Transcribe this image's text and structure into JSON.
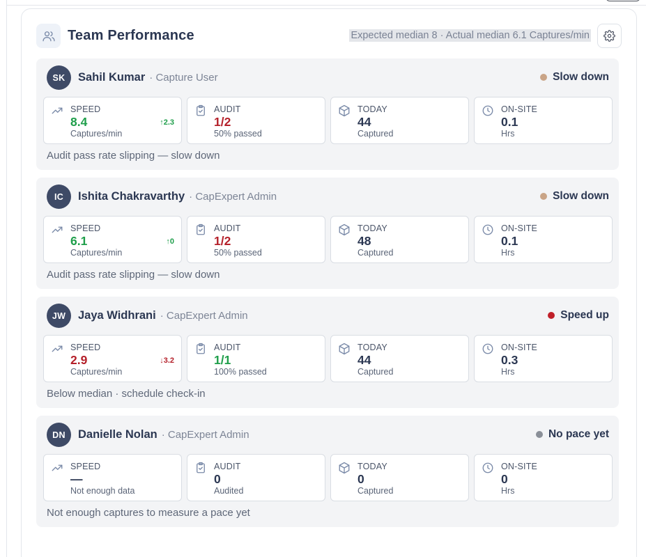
{
  "panel": {
    "title": "Team Performance",
    "median_summary": "Expected median 8 · Actual median 6.1 Captures/min"
  },
  "colors": {
    "green": "#1e9e4a",
    "red": "#b4202a",
    "slow_down_dot": "#c9a487",
    "speed_up_dot": "#c0202a",
    "no_pace_dot": "#8a8f98"
  },
  "members": [
    {
      "initials": "SK",
      "name": "Sahil Kumar",
      "role": "· Capture User",
      "pace": "Slow down",
      "speed": {
        "title": "SPEED",
        "value": "8.4",
        "sub": "Captures/min",
        "delta": "↑2.3"
      },
      "audit": {
        "title": "AUDIT",
        "value": "1/2",
        "sub": "50% passed"
      },
      "today": {
        "title": "TODAY",
        "value": "44",
        "sub": "Captured"
      },
      "onsite": {
        "title": "ON-SITE",
        "value": "0.1",
        "sub": "Hrs"
      },
      "note": "Audit pass rate slipping — slow down"
    },
    {
      "initials": "IC",
      "name": "Ishita Chakravarthy",
      "role": "· CapExpert Admin",
      "pace": "Slow down",
      "speed": {
        "title": "SPEED",
        "value": "6.1",
        "sub": "Captures/min",
        "delta": "↑0"
      },
      "audit": {
        "title": "AUDIT",
        "value": "1/2",
        "sub": "50% passed"
      },
      "today": {
        "title": "TODAY",
        "value": "48",
        "sub": "Captured"
      },
      "onsite": {
        "title": "ON-SITE",
        "value": "0.1",
        "sub": "Hrs"
      },
      "note": "Audit pass rate slipping — slow down"
    },
    {
      "initials": "JW",
      "name": "Jaya Widhrani",
      "role": "· CapExpert Admin",
      "pace": "Speed up",
      "speed": {
        "title": "SPEED",
        "value": "2.9",
        "sub": "Captures/min",
        "delta": "↓3.2"
      },
      "audit": {
        "title": "AUDIT",
        "value": "1/1",
        "sub": "100% passed"
      },
      "today": {
        "title": "TODAY",
        "value": "44",
        "sub": "Captured"
      },
      "onsite": {
        "title": "ON-SITE",
        "value": "0.3",
        "sub": "Hrs"
      },
      "note": "Below median · schedule check-in"
    },
    {
      "initials": "DN",
      "name": "Danielle Nolan",
      "role": "· CapExpert Admin",
      "pace": "No pace yet",
      "speed": {
        "title": "SPEED",
        "value": "—",
        "sub": "Not enough data",
        "delta": ""
      },
      "audit": {
        "title": "AUDIT",
        "value": "0",
        "sub": "Audited"
      },
      "today": {
        "title": "TODAY",
        "value": "0",
        "sub": "Captured"
      },
      "onsite": {
        "title": "ON-SITE",
        "value": "0",
        "sub": "Hrs"
      },
      "note": "Not enough captures to measure a pace yet"
    }
  ]
}
